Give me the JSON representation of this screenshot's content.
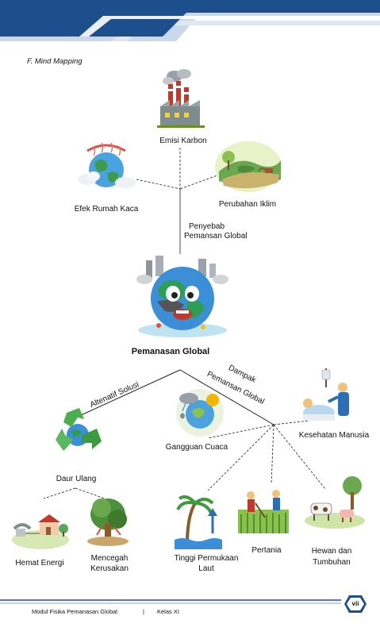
{
  "header": {
    "colors": {
      "dark": "#1d4f8c",
      "light": "#c9d8ea"
    }
  },
  "section_title": "F.  Mind Mapping",
  "nodes": {
    "emisi": "Emisi Karbon",
    "efek": "Efek Rumah Kaca",
    "iklim": "Perubahan Iklim",
    "penyebab_1": "Penyebab",
    "penyebab_2": "Pemansan Global",
    "center": "Pemanasan Global",
    "solusi": "Altenatif Solusi",
    "dampak_1": "Dampak",
    "dampak_2": "Pemansan Global",
    "daur": "Daur Ulang",
    "hemat": "Hemat Energi",
    "mencegah_1": "Mencegah",
    "mencegah_2": "Kerusakan",
    "cuaca": "Gangguan Cuaca",
    "kesehatan": "Kesehatan Manusia",
    "laut_1": "Tinggi Permukaan",
    "laut_2": "Laut",
    "pertania": "Pertania",
    "hewan_1": "Hewan dan",
    "hewan_2": "Tumbuhan"
  },
  "footer": {
    "module": "Modul Fisika Pemanasan Global",
    "separator": "|",
    "class": "Kelas XI",
    "page": "vii"
  }
}
